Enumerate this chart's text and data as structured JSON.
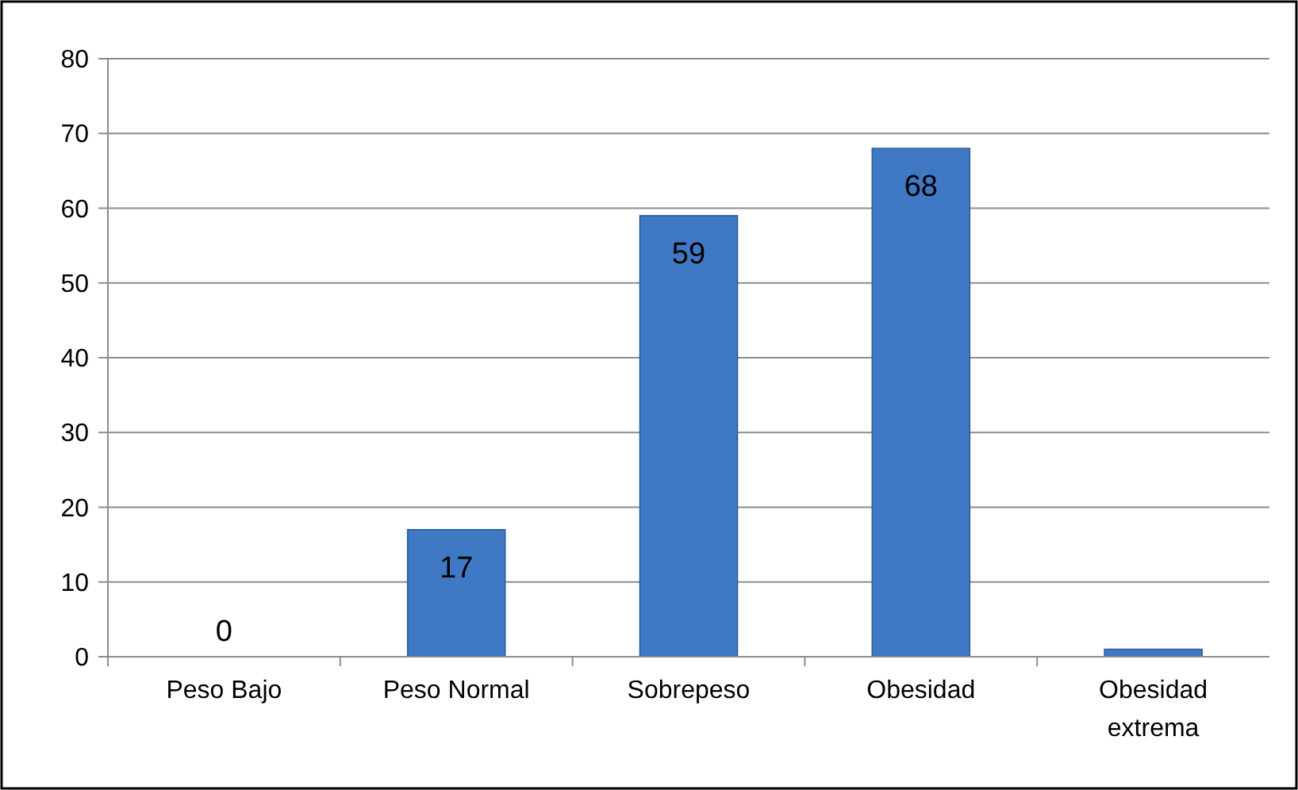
{
  "chart_data": {
    "type": "bar",
    "categories": [
      "Peso Bajo",
      "Peso Normal",
      "Sobrepeso",
      "Obesidad",
      "Obesidad extrema"
    ],
    "values": [
      0,
      17,
      59,
      68,
      1
    ],
    "value_labels": [
      "0",
      "17",
      "59",
      "68",
      null
    ],
    "color": "#3f78c3",
    "ylim": [
      0,
      80
    ],
    "yticks": [
      0,
      10,
      20,
      30,
      40,
      50,
      60,
      70,
      80
    ],
    "grid": "y"
  }
}
